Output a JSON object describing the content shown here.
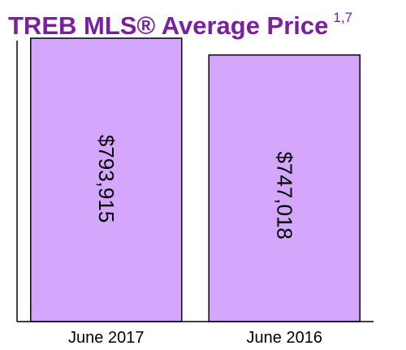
{
  "header": {
    "title": "TREB MLS® Average Price",
    "title_superscript": "1,7"
  },
  "colors": {
    "title": "#7a1fa0",
    "bar_fill": "#d4a6fc",
    "bar_stroke": "#000000",
    "axis": "#000000"
  },
  "chart_data": {
    "type": "bar",
    "title": "TREB MLS® Average Price",
    "xlabel": "",
    "ylabel": "",
    "categories": [
      "June 2017",
      "June 2016"
    ],
    "values": [
      793915,
      747018
    ],
    "data_labels": [
      "$793,915",
      "$747,018"
    ],
    "ylim": [
      0,
      810000
    ],
    "grid": false,
    "legend": "none"
  }
}
